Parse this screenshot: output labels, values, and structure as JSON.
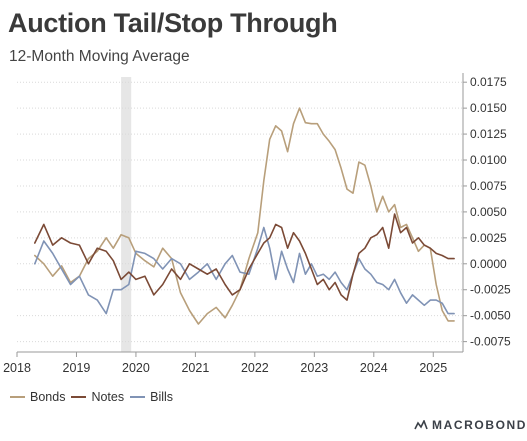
{
  "header": {
    "title": "Auction Tail/Stop Through",
    "subtitle": "12-Month Moving Average"
  },
  "logo": {
    "text": "MACROBOND"
  },
  "colors": {
    "bonds": "#b89f7b",
    "notes": "#7b4a36",
    "bills": "#8093b5",
    "shade": "#e6e6e6",
    "grid": "#d9d9d9",
    "axis": "#9a9a9a"
  },
  "chart_data": {
    "type": "line",
    "title": "Auction Tail/Stop Through",
    "subtitle": "12-Month Moving Average",
    "x_ticks": [
      "2018",
      "2019",
      "2020",
      "2021",
      "2022",
      "2023",
      "2024",
      "2025"
    ],
    "y_ticks": [
      "0.0175",
      "0.0150",
      "0.0125",
      "0.0100",
      "0.0075",
      "0.0050",
      "0.0025",
      "0.0000",
      "-0.0025",
      "-0.0050",
      "-0.0075"
    ],
    "ylim": [
      -0.0085,
      0.018
    ],
    "xlim": [
      2018.0,
      2025.5
    ],
    "grid": "horizontal",
    "y_axis_side": "right",
    "shaded_region": [
      2019.75,
      2019.92
    ],
    "legend": "bottom-left",
    "series": [
      {
        "name": "Bonds",
        "x": [
          2018.3,
          2018.45,
          2018.6,
          2018.75,
          2018.9,
          2019.05,
          2019.2,
          2019.35,
          2019.5,
          2019.62,
          2019.75,
          2019.88,
          2020.0,
          2020.15,
          2020.3,
          2020.45,
          2020.6,
          2020.75,
          2020.9,
          2021.05,
          2021.2,
          2021.35,
          2021.5,
          2021.62,
          2021.75,
          2021.9,
          2022.05,
          2022.15,
          2022.25,
          2022.35,
          2022.45,
          2022.55,
          2022.65,
          2022.75,
          2022.85,
          2022.95,
          2023.05,
          2023.15,
          2023.25,
          2023.35,
          2023.45,
          2023.55,
          2023.65,
          2023.75,
          2023.85,
          2023.95,
          2024.05,
          2024.15,
          2024.25,
          2024.35,
          2024.45,
          2024.55,
          2024.65,
          2024.75,
          2024.85,
          2024.95,
          2025.05,
          2025.15,
          2025.25,
          2025.35
        ],
        "values": [
          0.0008,
          0.0,
          -0.0012,
          -0.0002,
          -0.0018,
          -0.0012,
          0.0005,
          0.0012,
          0.0025,
          0.0015,
          0.0028,
          0.0025,
          0.001,
          0.0003,
          -0.0003,
          0.0015,
          0.0005,
          -0.0028,
          -0.0045,
          -0.0058,
          -0.0048,
          -0.0042,
          -0.0052,
          -0.004,
          -0.0025,
          0.0005,
          0.003,
          0.008,
          0.012,
          0.0133,
          0.0128,
          0.0108,
          0.0135,
          0.015,
          0.0136,
          0.0135,
          0.0135,
          0.0125,
          0.0118,
          0.011,
          0.0092,
          0.0072,
          0.0068,
          0.0098,
          0.0095,
          0.0075,
          0.005,
          0.0065,
          0.005,
          0.0057,
          0.0035,
          0.0038,
          0.0025,
          0.0012,
          0.0018,
          0.0015,
          -0.002,
          -0.0045,
          -0.0055,
          -0.0055
        ]
      },
      {
        "name": "Notes",
        "x": [
          2018.3,
          2018.45,
          2018.6,
          2018.75,
          2018.9,
          2019.05,
          2019.2,
          2019.35,
          2019.5,
          2019.62,
          2019.75,
          2019.88,
          2020.0,
          2020.15,
          2020.3,
          2020.45,
          2020.6,
          2020.75,
          2020.9,
          2021.05,
          2021.2,
          2021.35,
          2021.5,
          2021.62,
          2021.75,
          2021.9,
          2022.05,
          2022.15,
          2022.25,
          2022.35,
          2022.45,
          2022.55,
          2022.65,
          2022.75,
          2022.85,
          2022.95,
          2023.05,
          2023.15,
          2023.25,
          2023.35,
          2023.45,
          2023.55,
          2023.65,
          2023.75,
          2023.85,
          2023.95,
          2024.05,
          2024.15,
          2024.25,
          2024.35,
          2024.45,
          2024.55,
          2024.65,
          2024.75,
          2024.85,
          2024.95,
          2025.05,
          2025.15,
          2025.25,
          2025.35
        ],
        "values": [
          0.002,
          0.0038,
          0.0018,
          0.0025,
          0.002,
          0.0018,
          0.0,
          0.0015,
          0.0012,
          0.0003,
          -0.0015,
          -0.0008,
          -0.0015,
          -0.0012,
          -0.003,
          -0.002,
          -0.0005,
          -0.0015,
          0.0,
          -0.0005,
          -0.001,
          -0.0005,
          -0.002,
          -0.003,
          -0.0025,
          -0.0005,
          0.001,
          0.002,
          0.0025,
          0.0038,
          0.0035,
          0.0015,
          0.003,
          0.0022,
          0.001,
          -0.0005,
          -0.002,
          -0.0015,
          -0.0025,
          -0.0018,
          -0.003,
          -0.0035,
          -0.001,
          0.001,
          0.0015,
          0.0025,
          0.0028,
          0.0035,
          0.0015,
          0.0048,
          0.003,
          0.0035,
          0.002,
          0.0025,
          0.0018,
          0.0015,
          0.001,
          0.0008,
          0.0005,
          0.0005
        ]
      },
      {
        "name": "Bills",
        "x": [
          2018.3,
          2018.45,
          2018.6,
          2018.75,
          2018.9,
          2019.05,
          2019.2,
          2019.35,
          2019.5,
          2019.62,
          2019.75,
          2019.88,
          2020.0,
          2020.15,
          2020.3,
          2020.45,
          2020.6,
          2020.75,
          2020.9,
          2021.05,
          2021.2,
          2021.35,
          2021.5,
          2021.62,
          2021.75,
          2021.9,
          2022.05,
          2022.15,
          2022.25,
          2022.35,
          2022.45,
          2022.55,
          2022.65,
          2022.75,
          2022.85,
          2022.95,
          2023.05,
          2023.15,
          2023.25,
          2023.35,
          2023.45,
          2023.55,
          2023.65,
          2023.75,
          2023.85,
          2023.95,
          2024.05,
          2024.15,
          2024.25,
          2024.35,
          2024.45,
          2024.55,
          2024.65,
          2024.75,
          2024.85,
          2024.95,
          2025.05,
          2025.15,
          2025.25,
          2025.35
        ],
        "values": [
          0.0,
          0.0022,
          0.001,
          -0.0005,
          -0.002,
          -0.0012,
          -0.003,
          -0.0035,
          -0.0048,
          -0.0025,
          -0.0025,
          -0.002,
          0.0012,
          0.001,
          0.0005,
          -0.0005,
          0.0005,
          0.0,
          -0.0015,
          -0.0008,
          0.0,
          -0.0015,
          0.0,
          0.0008,
          -0.0008,
          -0.001,
          0.0015,
          0.0035,
          0.0015,
          -0.0015,
          0.0012,
          -0.0005,
          -0.0018,
          0.001,
          -0.001,
          0.0,
          -0.0012,
          -0.001,
          -0.0015,
          -0.0008,
          -0.0018,
          -0.0025,
          -0.001,
          0.0005,
          -0.0005,
          -0.001,
          -0.0018,
          -0.002,
          -0.0025,
          -0.0015,
          -0.0028,
          -0.0038,
          -0.003,
          -0.0035,
          -0.004,
          -0.0035,
          -0.0035,
          -0.0038,
          -0.0048,
          -0.0048
        ]
      }
    ]
  }
}
